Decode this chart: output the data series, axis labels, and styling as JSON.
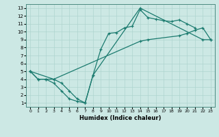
{
  "xlabel": "Humidex (Indice chaleur)",
  "xlim": [
    -0.5,
    23.5
  ],
  "ylim": [
    0.5,
    13.5
  ],
  "xticks": [
    0,
    1,
    2,
    3,
    4,
    5,
    6,
    7,
    8,
    9,
    10,
    11,
    12,
    13,
    14,
    15,
    16,
    17,
    18,
    19,
    20,
    21,
    22,
    23
  ],
  "yticks": [
    1,
    2,
    3,
    4,
    5,
    6,
    7,
    8,
    9,
    10,
    11,
    12,
    13
  ],
  "bg_color": "#cce8e4",
  "line_color": "#1a7a6e",
  "grid_color": "#aed4cf",
  "lineA_x": [
    0,
    1,
    2,
    3,
    4,
    5,
    6,
    7,
    8,
    9,
    10,
    11,
    12,
    13,
    14,
    15,
    16,
    17,
    18,
    19,
    20,
    21
  ],
  "lineA_y": [
    5.0,
    4.0,
    4.0,
    3.5,
    2.5,
    1.5,
    1.2,
    1.0,
    4.5,
    7.8,
    9.8,
    9.9,
    10.5,
    10.7,
    12.8,
    11.8,
    11.6,
    11.4,
    11.3,
    11.5,
    11.0,
    10.5
  ],
  "lineB_x": [
    0,
    1,
    2,
    3,
    14,
    15,
    19,
    20,
    21,
    22,
    23
  ],
  "lineB_y": [
    5.0,
    4.0,
    4.0,
    4.0,
    8.8,
    9.0,
    9.5,
    9.8,
    10.2,
    10.5,
    9.0
  ],
  "lineC_x": [
    0,
    3,
    4,
    5,
    6,
    7,
    8,
    14,
    22,
    23
  ],
  "lineC_y": [
    5.0,
    4.0,
    3.5,
    2.5,
    1.5,
    1.0,
    4.5,
    13.0,
    9.0,
    9.0
  ]
}
